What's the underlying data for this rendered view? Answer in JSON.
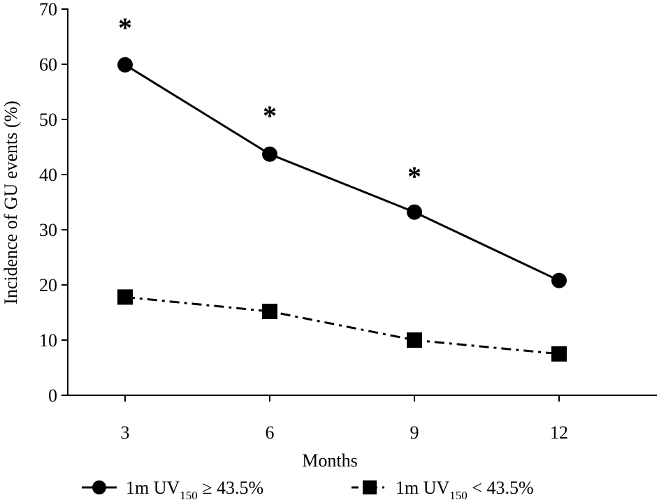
{
  "chart_data": {
    "type": "line",
    "title": "",
    "xlabel": "Months",
    "ylabel": "Incidence of GU events (%)",
    "x": [
      3,
      6,
      9,
      12
    ],
    "xticks": [
      "3",
      "6",
      "9",
      "12"
    ],
    "xlim": [
      0,
      14
    ],
    "ylim": [
      0,
      70
    ],
    "yticks": [
      "0",
      "10",
      "20",
      "30",
      "40",
      "50",
      "60",
      "70"
    ],
    "grid": false,
    "legend_placement": "bottom",
    "series": [
      {
        "name": "1m UV150 ≥ 43.5%",
        "legend_prefix": "1m UV",
        "legend_sub": "150",
        "legend_suffix": " ≥ 43.5%",
        "marker": "circle",
        "linestyle": "solid",
        "values": [
          59.9,
          43.7,
          33.2,
          20.8
        ]
      },
      {
        "name": "1m UV150 < 43.5%",
        "legend_prefix": "1m UV",
        "legend_sub": "150",
        "legend_suffix": " < 43.5%",
        "marker": "square",
        "linestyle": "dashdot",
        "values": [
          17.8,
          15.2,
          10.0,
          7.5
        ]
      }
    ],
    "annotations": [
      {
        "text": "*",
        "x": 3,
        "y": 67.5
      },
      {
        "text": "*",
        "x": 6,
        "y": 51.5
      },
      {
        "text": "*",
        "x": 9,
        "y": 40.5
      }
    ]
  }
}
